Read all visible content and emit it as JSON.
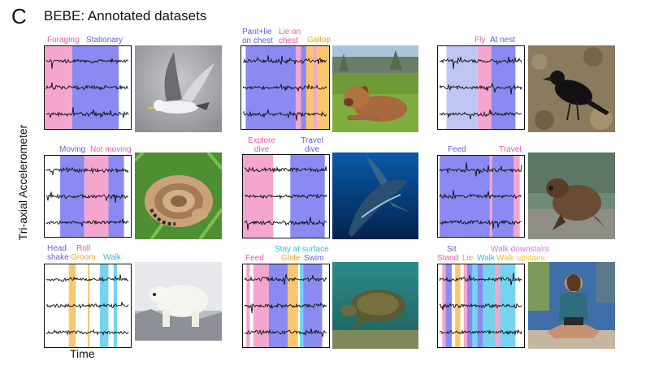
{
  "panel_letter": "C",
  "title": "BEBE: Annotated datasets",
  "ylabel": "Tri-axial Accelerometer",
  "xlabel": "Time",
  "colors": {
    "pink": "#f4a6cf",
    "blue": "#8a8af2",
    "orange": "#f8c770",
    "cyan": "#76d3ee",
    "lightblue": "#bfc6f4"
  },
  "datasets": [
    {
      "name": "gull",
      "icon": "gull-photo",
      "labels": [
        {
          "text": "Foraging",
          "color": "#e75aa8"
        },
        {
          "text": "Stationary",
          "color": "#5f5fd8"
        }
      ]
    },
    {
      "name": "dog",
      "icon": "dog-photo",
      "labels": [
        {
          "text": "Pant+lie on chest",
          "color": "#5f5fd8"
        },
        {
          "text": "Lie on chest",
          "color": "#e75aa8"
        },
        {
          "text": "Gallop",
          "color": "#e9a623"
        }
      ]
    },
    {
      "name": "crow",
      "icon": "crow-photo",
      "labels": [
        {
          "text": "Fly",
          "color": "#e75aa8"
        },
        {
          "text": "At nest",
          "color": "#5f5fd8"
        }
      ]
    },
    {
      "name": "rattlesnake",
      "icon": "rattlesnake-photo",
      "labels": [
        {
          "text": "Moving",
          "color": "#5f5fd8"
        },
        {
          "text": "Not moving",
          "color": "#e75aa8"
        }
      ]
    },
    {
      "name": "whale",
      "icon": "whale-photo",
      "labels": [
        {
          "text": "Explore dive",
          "color": "#e75aa8"
        },
        {
          "text": "Travel dive",
          "color": "#5f5fd8"
        }
      ]
    },
    {
      "name": "seal",
      "icon": "seal-photo",
      "labels": [
        {
          "text": "Feed",
          "color": "#5f5fd8"
        },
        {
          "text": "Travel",
          "color": "#e75aa8"
        }
      ]
    },
    {
      "name": "polar-bear",
      "icon": "polar-bear-photo",
      "labels": [
        {
          "text": "Head shake",
          "color": "#5f5fd8"
        },
        {
          "text": "Roll",
          "color": "#e75aa8"
        },
        {
          "text": "Groom",
          "color": "#e9a623"
        },
        {
          "text": "Walk",
          "color": "#38b7dd"
        }
      ]
    },
    {
      "name": "turtle",
      "icon": "turtle-photo",
      "labels": [
        {
          "text": "Stay at surface",
          "color": "#38b7dd"
        },
        {
          "text": "Feed",
          "color": "#e75aa8"
        },
        {
          "text": "Glide",
          "color": "#e9a623"
        },
        {
          "text": "Swim",
          "color": "#5f5fd8"
        }
      ]
    },
    {
      "name": "human",
      "icon": "human-photo",
      "labels": [
        {
          "text": "Walk downstairs",
          "color": "#d873e8"
        },
        {
          "text": "Sit",
          "color": "#5f5fd8"
        },
        {
          "text": "Stand",
          "color": "#e75aa8"
        },
        {
          "text": "Lie",
          "color": "#e9a623"
        },
        {
          "text": "Walk",
          "color": "#38b7dd"
        },
        {
          "text": "Walk upstairs",
          "color": "#e9c41f"
        }
      ]
    }
  ]
}
